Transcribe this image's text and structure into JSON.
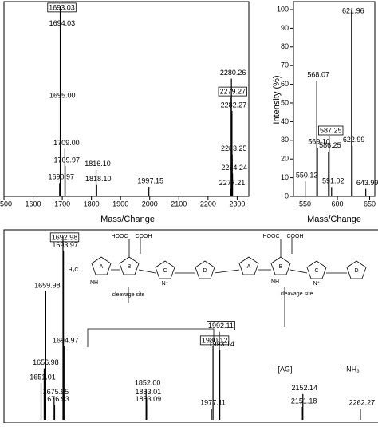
{
  "chart_data": [
    {
      "type": "spectrum",
      "x_label": "Mass/Change",
      "color": "#000000",
      "xlim": [
        1500,
        2340
      ],
      "xticks": [
        1500,
        1600,
        1700,
        1800,
        1900,
        2000,
        2100,
        2200,
        2300
      ],
      "ylim": [
        0,
        100
      ],
      "x": [
        1693.03,
        1694.03,
        1695.0,
        1709.0,
        1709.97,
        1690.97,
        1816.1,
        1818.1,
        1997.15,
        2280.26,
        2279.27,
        2282.27,
        2283.25,
        2284.24,
        2277.21
      ],
      "values": [
        100,
        88,
        50,
        25,
        16,
        7,
        14,
        6,
        5,
        62,
        52,
        45,
        22,
        12,
        4
      ],
      "labels": [
        "1693.03",
        "1694.03",
        "1695.00",
        "1709.00",
        "1709.97",
        "1690.97",
        "1816.10",
        "1818.10",
        "1997.15",
        "2280.26",
        "2279.27",
        "2282.27",
        "2283.25",
        "2284.24",
        "2277.21"
      ],
      "boxed": [
        0,
        10
      ]
    },
    {
      "type": "spectrum",
      "x_label": "Mass/Change",
      "y_label": "Intensity (%)",
      "color": "#000000",
      "xlim": [
        532,
        658
      ],
      "xticks": [
        550,
        600,
        650
      ],
      "ylim": [
        0,
        100
      ],
      "yticks": [
        0,
        10,
        20,
        30,
        40,
        50,
        60,
        70,
        80,
        90,
        100
      ],
      "x": [
        621.96,
        568.07,
        587.25,
        569.1,
        586.25,
        622.99,
        550.12,
        591.02,
        643.99
      ],
      "values": [
        100,
        62,
        32,
        26,
        24,
        27,
        8,
        5,
        4
      ],
      "labels": [
        "621.96",
        "568.07",
        "587.25",
        "569.10",
        "586.25",
        "622.99",
        "550.12",
        "591.02",
        "643.99"
      ],
      "boxed": [
        2
      ]
    },
    {
      "type": "spectrum",
      "color": "#000000",
      "xlim": [
        1580,
        2296
      ],
      "ylim": [
        0,
        100
      ],
      "x": [
        1692.98,
        1693.97,
        1659.98,
        1694.97,
        1656.98,
        1651.01,
        1675.95,
        1676.93,
        1852.0,
        1853.01,
        1853.09,
        1977.11,
        1980.12,
        1992.11,
        1993.14,
        2152.14,
        2151.18,
        2262.27
      ],
      "values": [
        100,
        92,
        70,
        40,
        28,
        20,
        12,
        8,
        17,
        12,
        8,
        6,
        40,
        48,
        38,
        14,
        7,
        6
      ],
      "labels": [
        "1692.98",
        "1693.97",
        "1659.98",
        "1694.97",
        "1656.98",
        "1651.01",
        "1675.95",
        "1676.93",
        "1852.00",
        "1853.01",
        "1853.09",
        "1977.11",
        "1980.12",
        "1992.11",
        "1993.14",
        "2152.14",
        "2151.18",
        "2262.27"
      ],
      "boxed": [
        0,
        12,
        13
      ],
      "annotations": [
        "–[AG]",
        "–NH₃"
      ]
    }
  ],
  "structure": {
    "rings": [
      "A",
      "B",
      "C",
      "D",
      "A",
      "B",
      "C",
      "D"
    ],
    "groups": [
      "HOOC",
      "COOH",
      "HOOC",
      "COOH",
      "H₃C",
      "NH",
      "N⁺",
      "NH",
      "N⁺"
    ],
    "cleavage": [
      "cleavage site",
      "cleavage site"
    ]
  }
}
